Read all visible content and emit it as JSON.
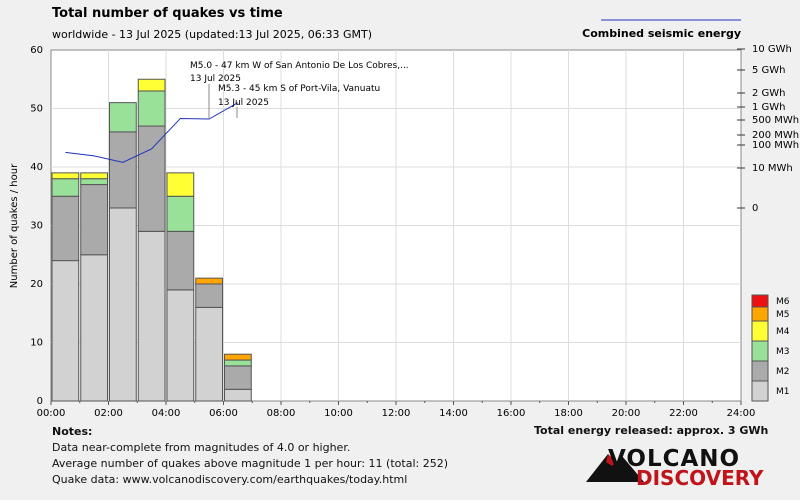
{
  "header": {
    "title": "Total number of quakes vs time",
    "subtitle": "worldwide - 13 Jul 2025 (updated:13 Jul 2025, 06:33 GMT)",
    "energy_legend": "Combined seismic energy"
  },
  "chart_data": {
    "type": "bar",
    "stacked": true,
    "ylabel": "Number of quakes / hour",
    "ylim": [
      0,
      60
    ],
    "yticks": [
      0,
      10,
      20,
      30,
      40,
      50,
      60
    ],
    "xticks": [
      "00:00",
      "02:00",
      "04:00",
      "06:00",
      "08:00",
      "10:00",
      "12:00",
      "14:00",
      "16:00",
      "18:00",
      "20:00",
      "22:00",
      "24:00"
    ],
    "categories": [
      "00:00",
      "01:00",
      "02:00",
      "03:00",
      "04:00",
      "05:00",
      "06:00"
    ],
    "series": [
      {
        "name": "M1",
        "color": "#d2d2d2",
        "values": [
          24,
          25,
          33,
          29,
          19,
          16,
          2
        ]
      },
      {
        "name": "M2",
        "color": "#aaaaaa",
        "values": [
          11,
          12,
          13,
          18,
          10,
          4,
          4
        ]
      },
      {
        "name": "M3",
        "color": "#99e099",
        "values": [
          3,
          1,
          5,
          6,
          6,
          0,
          1
        ]
      },
      {
        "name": "M4",
        "color": "#ffff33",
        "values": [
          1,
          1,
          0,
          2,
          4,
          0,
          0
        ]
      },
      {
        "name": "M5",
        "color": "#ffa500",
        "values": [
          0,
          0,
          0,
          0,
          0,
          1,
          1
        ]
      },
      {
        "name": "M6",
        "color": "#ee1111",
        "values": [
          0,
          0,
          0,
          0,
          0,
          0,
          0
        ]
      }
    ],
    "energy_axis": {
      "ticks": [
        "10 GWh",
        "5 GWh",
        "2 GWh",
        "1 GWh",
        "500 MWh",
        "200 MWh",
        "100 MWh",
        "10 MWh",
        "0"
      ],
      "line_color": "#2233bb",
      "line_values_y": [
        42.5,
        41.9,
        40.8,
        43.1,
        48.3,
        48.2,
        51.0
      ]
    },
    "annotations": [
      {
        "lines": [
          "M5.0 - 47 km W of San Antonio De Los Cobres,...",
          "13 Jul 2025"
        ]
      },
      {
        "lines": [
          "M5.3 - 45 km S of Port-Vila, Vanuatu",
          "13 Jul 2025"
        ]
      }
    ]
  },
  "notes": {
    "heading": "Notes:",
    "line1": "Data near-complete from magnitudes of 4.0 or higher.",
    "line2": "Average number of quakes above magnitude 1 per hour: 11 (total: 252)",
    "line3": "Quake data: www.volcanodiscovery.com/earthquakes/today.html"
  },
  "total_energy": "Total energy released: approx. 3 GWh",
  "logo": {
    "line1": "VOLCANO",
    "line2": "DISCOVERY"
  }
}
